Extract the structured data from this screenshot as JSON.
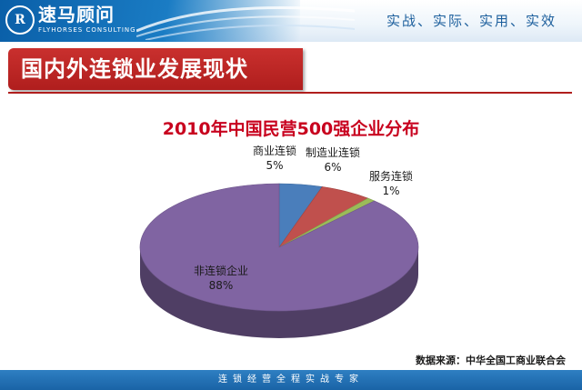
{
  "header": {
    "logo_mark": "R",
    "logo_name": "速马顾问",
    "logo_sub": "FLYHORSES CONSULTING",
    "slogan": "实战、实际、实用、实效"
  },
  "slide": {
    "title": "国内外连锁业发展现状",
    "source": "数据来源：中华全国工商业联合会"
  },
  "footer": {
    "text": "连锁经营全程实战专家"
  },
  "colors": {
    "brand_blue": "#1a6fb8",
    "title_red": "#b01e1d"
  },
  "chart_data": {
    "type": "pie",
    "title": "2010年中国民营500强企业分布",
    "categories": [
      "商业连锁",
      "制造业连锁",
      "服务连锁",
      "非连锁企业"
    ],
    "values": [
      5,
      6,
      1,
      88
    ],
    "value_labels": [
      "5%",
      "6%",
      "1%",
      "88%"
    ],
    "colors": [
      "#4a7ebb",
      "#c0504d",
      "#9bbb59",
      "#8064a2"
    ],
    "style": "3d"
  }
}
